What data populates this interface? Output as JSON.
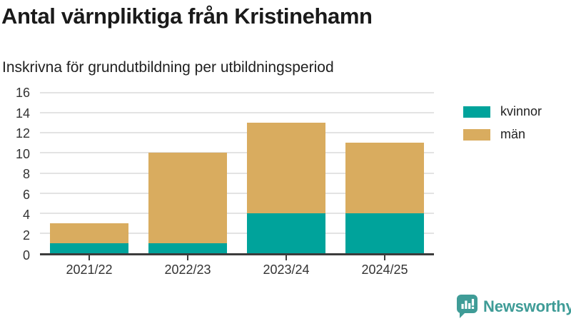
{
  "header": {
    "title": "Antal värnpliktiga från Kristinehamn",
    "subtitle": "Inskrivna för grundutbildning per utbildningsperiod"
  },
  "chart_data": {
    "type": "bar",
    "stacked": true,
    "title": "Antal värnpliktiga från Kristinehamn",
    "subtitle": "Inskrivna för grundutbildning per utbildningsperiod",
    "categories": [
      "2021/22",
      "2022/23",
      "2023/24",
      "2024/25"
    ],
    "series": [
      {
        "name": "kvinnor",
        "color": "#00A39B",
        "values": [
          1,
          1,
          4,
          4
        ]
      },
      {
        "name": "män",
        "color": "#D9AC5F",
        "values": [
          2,
          9,
          9,
          7
        ]
      }
    ],
    "totals": [
      3,
      10,
      13,
      11
    ],
    "xlabel": "",
    "ylabel": "",
    "ylim": [
      0,
      16
    ],
    "yticks": [
      0,
      2,
      4,
      6,
      8,
      10,
      12,
      14,
      16
    ],
    "grid": true,
    "legend_position": "right",
    "axis_color": "#3C3C3C",
    "gridline_color": "#E3E3E3"
  },
  "branding": {
    "logo_text": "Newsworthy",
    "logo_color": "#3F9C97",
    "logo_icon": "bar-chart-speech-bubble-icon"
  }
}
